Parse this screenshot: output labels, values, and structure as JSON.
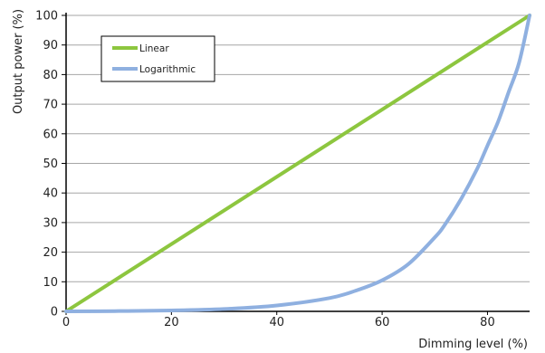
{
  "chart_data": {
    "type": "line",
    "xlabel": "Dimming level (%)",
    "ylabel": "Output power (%)",
    "xlim": [
      0,
      88
    ],
    "ylim": [
      0,
      100
    ],
    "x_ticks": [
      0,
      20,
      40,
      60,
      80
    ],
    "y_ticks": [
      0,
      10,
      20,
      30,
      40,
      50,
      60,
      70,
      80,
      90,
      100
    ],
    "grid": "horizontal",
    "legend_position": "top-left",
    "series": [
      {
        "name": "Linear",
        "color": "#8dc63f",
        "x": [
          0,
          88
        ],
        "y": [
          0,
          100
        ]
      },
      {
        "name": "Logarithmic",
        "color": "#8fb0e0",
        "x": [
          0,
          10,
          20,
          30,
          40,
          50,
          55,
          60,
          65,
          70,
          72,
          75,
          78,
          80,
          82,
          84,
          86,
          88
        ],
        "y": [
          0,
          0.1,
          0.3,
          0.8,
          2,
          4.5,
          7,
          10.5,
          16,
          25,
          29.5,
          38,
          48,
          56,
          64,
          74,
          84,
          100
        ]
      }
    ]
  }
}
